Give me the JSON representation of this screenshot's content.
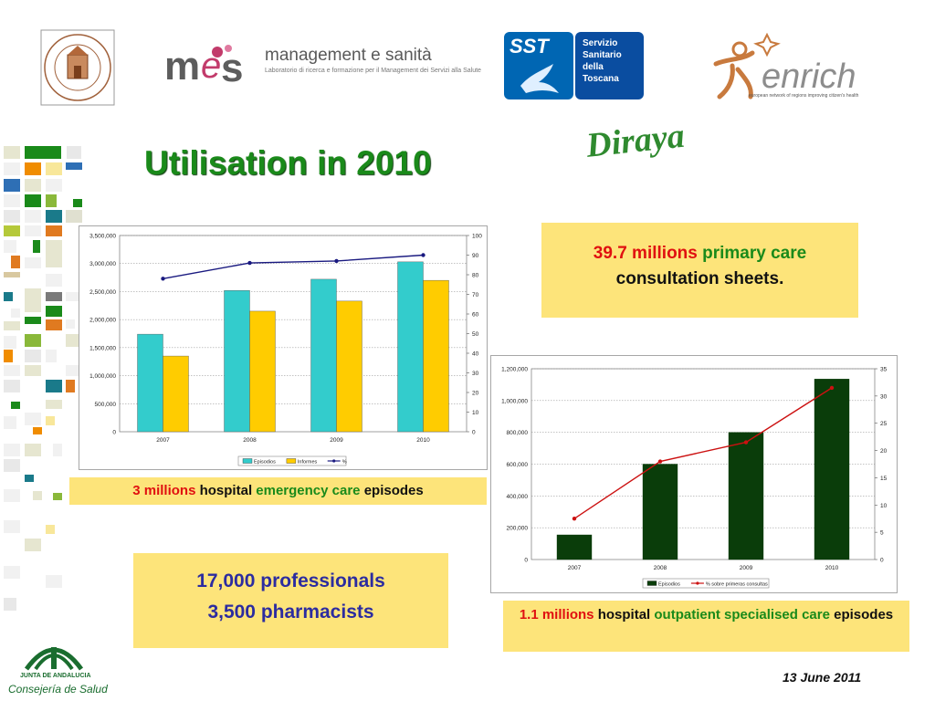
{
  "header": {
    "mes_label": "management e sanità",
    "mes_subtitle": "Laboratorio di ricerca e formazione per il Management dei Servizi alla Salute",
    "sst_short": "SST",
    "sst_lines": [
      "Servizio",
      "Sanitario",
      "della",
      "Toscana"
    ],
    "enrich_subtitle": "european network of regions improving citizen's health"
  },
  "slide": {
    "title": "Utilisation in 2010",
    "brand": "Diraya",
    "date": "13 June 2011"
  },
  "callouts": {
    "primary_care": {
      "num": "39.7 millions",
      "mid": " primary care",
      "rest": "consultation sheets."
    },
    "emergency": {
      "num": "3 millions",
      "a": " hospital ",
      "b": "emergency care",
      "c": " episodes"
    },
    "staff": {
      "line1": "17,000 professionals",
      "line2": "3,500 pharmacists"
    },
    "outpatient": {
      "num": "1.1 millions",
      "a": " hospital ",
      "b": "outpatient specialised care",
      "c": " episodes"
    }
  },
  "footer": {
    "junta_line1": "JUNTA DE ANDALUCIA",
    "junta_line2": "Consejería de Salud"
  },
  "colors": {
    "title_green": "#1a8a1a",
    "callout_yellow": "#fde47a",
    "callout_red": "#e01010",
    "bar_cyan": "#33cccc",
    "bar_yellow": "#ffcc00",
    "line_navy": "#1a1a80",
    "bar_darkgreen": "#0a3d0a",
    "line_red": "#cc1111"
  },
  "chart_data": [
    {
      "type": "bar",
      "categories": [
        "2007",
        "2008",
        "2009",
        "2010"
      ],
      "series": [
        {
          "name": "Episodios",
          "values": [
            1740000,
            2520000,
            2720000,
            3030000
          ]
        },
        {
          "name": "Informes",
          "values": [
            1350000,
            2150000,
            2330000,
            2700000
          ]
        },
        {
          "name": "%",
          "values": [
            78,
            86,
            87,
            90
          ],
          "axis": "right",
          "kind": "line"
        }
      ],
      "ylim": [
        0,
        3500000
      ],
      "yticks": [
        "0",
        "500,000",
        "1,000,000",
        "1,500,000",
        "2,000,000",
        "2,500,000",
        "3,000,000",
        "3,500,000"
      ],
      "y2lim": [
        0,
        100
      ],
      "y2ticks": [
        "0",
        "10",
        "20",
        "30",
        "40",
        "50",
        "60",
        "70",
        "80",
        "90",
        "100"
      ],
      "grid": true,
      "legend": "bottom"
    },
    {
      "type": "bar",
      "categories": [
        "2007",
        "2008",
        "2009",
        "2010"
      ],
      "series": [
        {
          "name": "Episodios",
          "values": [
            155000,
            600000,
            800000,
            1135000
          ]
        },
        {
          "name": "% sobre primeras consultas",
          "values": [
            7.5,
            18,
            21.5,
            31.5
          ],
          "axis": "right",
          "kind": "line"
        }
      ],
      "ylim": [
        0,
        1200000
      ],
      "yticks": [
        "0",
        "200,000",
        "400,000",
        "600,000",
        "800,000",
        "1,000,000",
        "1,200,000"
      ],
      "y2lim": [
        0,
        35
      ],
      "y2ticks": [
        "0",
        "5",
        "10",
        "15",
        "20",
        "25",
        "30",
        "35"
      ],
      "grid": true,
      "legend": "bottom"
    }
  ]
}
